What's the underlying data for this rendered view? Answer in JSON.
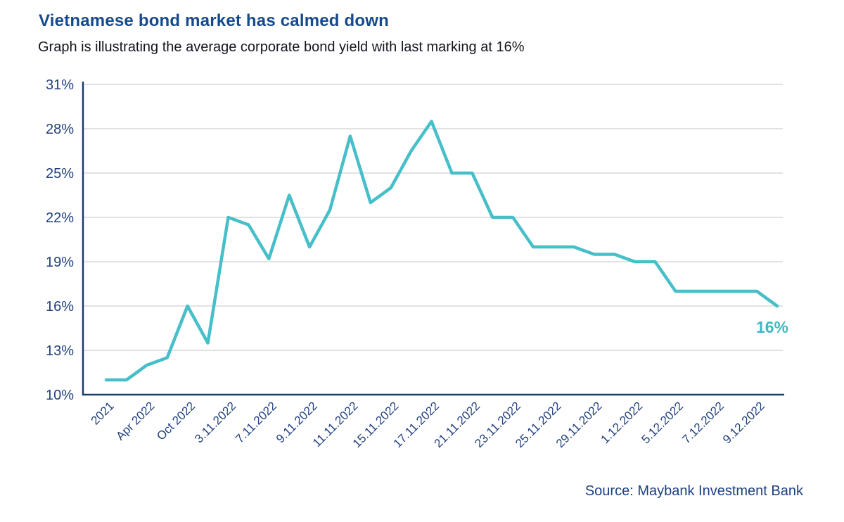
{
  "page": {
    "background": "#FFFFFF"
  },
  "header": {
    "title": "Vietnamese bond market has calmed down",
    "subtitle": "Graph is illustrating the average corporate bond yield with last marking at 16%"
  },
  "footer": {
    "source": "Source: Maybank Investment Bank"
  },
  "chart_data": {
    "type": "line",
    "title": "Vietnamese bond market has calmed down",
    "subtitle": "Graph is illustrating the average corporate bond yield with last marking at 16%",
    "series_name": "Average corporate bond yield",
    "x_tick_labels": [
      "2021",
      "Apr 2022",
      "Oct 2022",
      "3.11.2022",
      "7.11.2022",
      "9.11.2022",
      "11.11.2022",
      "15.11.2022",
      "17.11.2022",
      "21.11.2022",
      "23.11.2022",
      "25.11.2022",
      "29.11.2022",
      "1.12.2022",
      "5.12.2022",
      "7.12.2022",
      "9.12.2022"
    ],
    "label_every": 2,
    "values": [
      11,
      11,
      12,
      12.5,
      16,
      13.5,
      22,
      21.5,
      19.2,
      23.5,
      20,
      22.5,
      27.5,
      23,
      24,
      26.5,
      28.5,
      25,
      25,
      22,
      22,
      20,
      20,
      20,
      19.5,
      19.5,
      19,
      19,
      17,
      17,
      17,
      17,
      17,
      16
    ],
    "ylim": [
      10,
      31
    ],
    "yticks": [
      31,
      28,
      25,
      22,
      19,
      16,
      13,
      10
    ],
    "ytick_suffix": "%",
    "grid": "horizontal",
    "legend": "none",
    "end_label": "16%",
    "x_tick_rotation": 45,
    "colors": {
      "line": "#46BFC8",
      "line_label": "#3CB8C4",
      "axis_text": "#21407E",
      "axis_line": "#1B3B6F",
      "grid": "#E2E2E2",
      "title": "#164A8C",
      "subtitle": "#15151F",
      "source": "#1C4080"
    }
  }
}
